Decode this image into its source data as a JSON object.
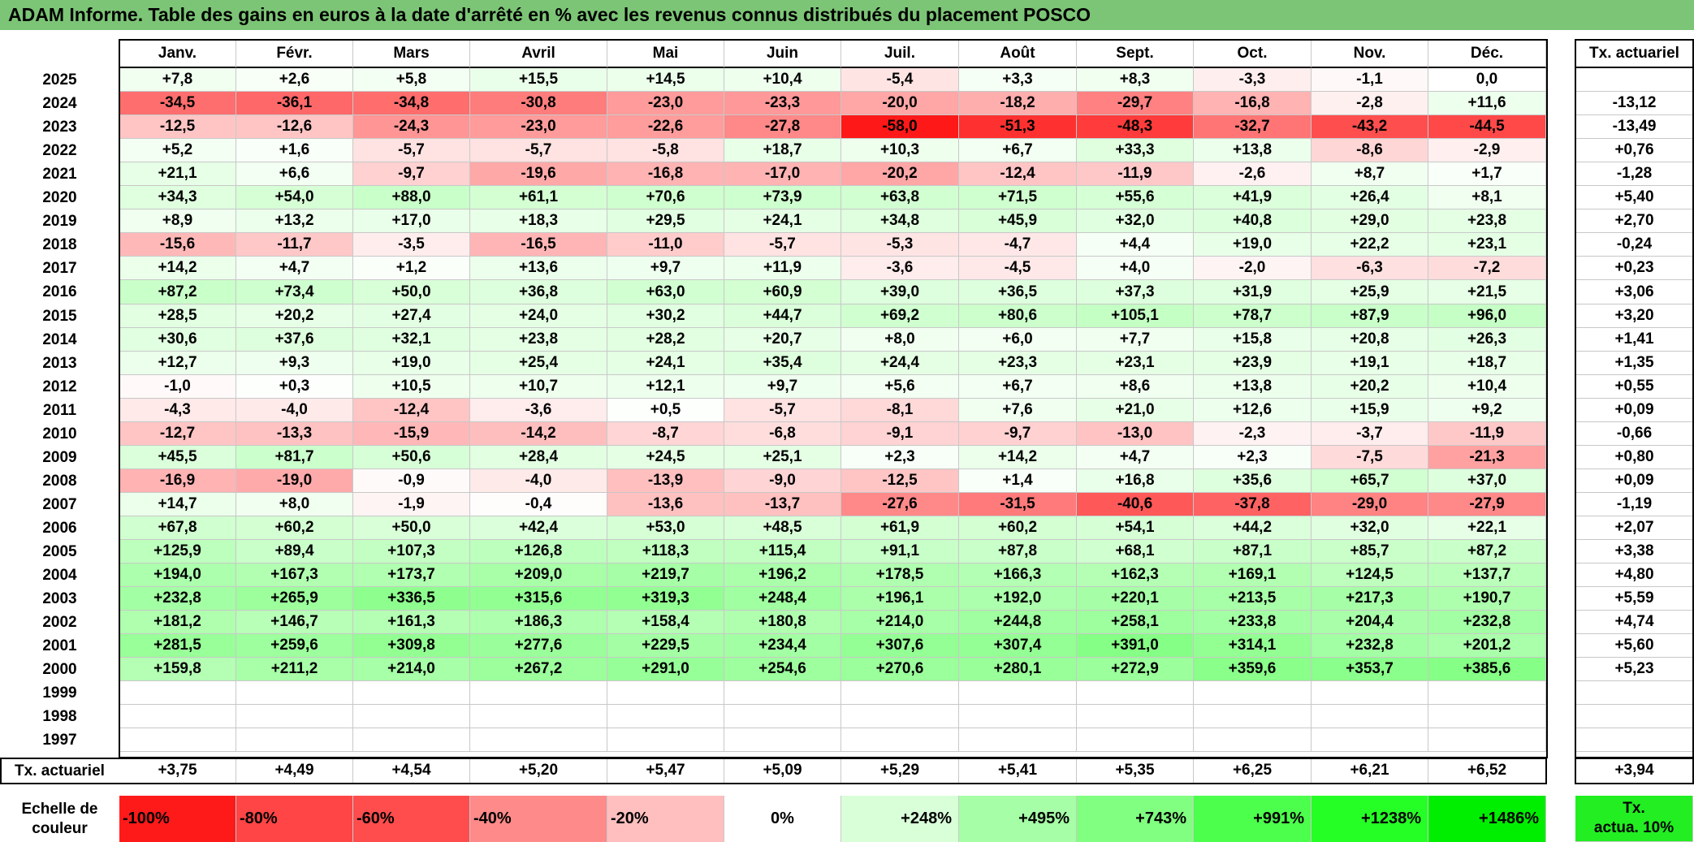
{
  "title": "ADAM Informe. Table des gains en euros à la date d'arrêté en % avec les revenus connus distribués du placement POSCO",
  "months": [
    "Janv.",
    "Févr.",
    "Mars",
    "Avril",
    "Mai",
    "Juin",
    "Juil.",
    "Août",
    "Sept.",
    "Oct.",
    "Nov.",
    "Déc."
  ],
  "annual_header": "Tx. actuariel",
  "rows": [
    {
      "year": "2025",
      "values": [
        "+7,8",
        "+2,6",
        "+5,8",
        "+15,5",
        "+14,5",
        "+10,4",
        "-5,4",
        "+3,3",
        "+8,3",
        "-3,3",
        "-1,1",
        "0,0"
      ],
      "annual": ""
    },
    {
      "year": "2024",
      "values": [
        "-34,5",
        "-36,1",
        "-34,8",
        "-30,8",
        "-23,0",
        "-23,3",
        "-20,0",
        "-18,2",
        "-29,7",
        "-16,8",
        "-2,8",
        "+11,6"
      ],
      "annual": "-13,12"
    },
    {
      "year": "2023",
      "values": [
        "-12,5",
        "-12,6",
        "-24,3",
        "-23,0",
        "-22,6",
        "-27,8",
        "-58,0",
        "-51,3",
        "-48,3",
        "-32,7",
        "-43,2",
        "-44,5"
      ],
      "annual": "-13,49"
    },
    {
      "year": "2022",
      "values": [
        "+5,2",
        "+1,6",
        "-5,7",
        "-5,7",
        "-5,8",
        "+18,7",
        "+10,3",
        "+6,7",
        "+33,3",
        "+13,8",
        "-8,6",
        "-2,9"
      ],
      "annual": "+0,76"
    },
    {
      "year": "2021",
      "values": [
        "+21,1",
        "+6,6",
        "-9,7",
        "-19,6",
        "-16,8",
        "-17,0",
        "-20,2",
        "-12,4",
        "-11,9",
        "-2,6",
        "+8,7",
        "+1,7"
      ],
      "annual": "-1,28"
    },
    {
      "year": "2020",
      "values": [
        "+34,3",
        "+54,0",
        "+88,0",
        "+61,1",
        "+70,6",
        "+73,9",
        "+63,8",
        "+71,5",
        "+55,6",
        "+41,9",
        "+26,4",
        "+8,1"
      ],
      "annual": "+5,40"
    },
    {
      "year": "2019",
      "values": [
        "+8,9",
        "+13,2",
        "+17,0",
        "+18,3",
        "+29,5",
        "+24,1",
        "+34,8",
        "+45,9",
        "+32,0",
        "+40,8",
        "+29,0",
        "+23,8"
      ],
      "annual": "+2,70"
    },
    {
      "year": "2018",
      "values": [
        "-15,6",
        "-11,7",
        "-3,5",
        "-16,5",
        "-11,0",
        "-5,7",
        "-5,3",
        "-4,7",
        "+4,4",
        "+19,0",
        "+22,2",
        "+23,1"
      ],
      "annual": "-0,24"
    },
    {
      "year": "2017",
      "values": [
        "+14,2",
        "+4,7",
        "+1,2",
        "+13,6",
        "+9,7",
        "+11,9",
        "-3,6",
        "-4,5",
        "+4,0",
        "-2,0",
        "-6,3",
        "-7,2"
      ],
      "annual": "+0,23"
    },
    {
      "year": "2016",
      "values": [
        "+87,2",
        "+73,4",
        "+50,0",
        "+36,8",
        "+63,0",
        "+60,9",
        "+39,0",
        "+36,5",
        "+37,3",
        "+31,9",
        "+25,9",
        "+21,5"
      ],
      "annual": "+3,06"
    },
    {
      "year": "2015",
      "values": [
        "+28,5",
        "+20,2",
        "+27,4",
        "+24,0",
        "+30,2",
        "+44,7",
        "+69,2",
        "+80,6",
        "+105,1",
        "+78,7",
        "+87,9",
        "+96,0"
      ],
      "annual": "+3,20"
    },
    {
      "year": "2014",
      "values": [
        "+30,6",
        "+37,6",
        "+32,1",
        "+23,8",
        "+28,2",
        "+20,7",
        "+8,0",
        "+6,0",
        "+7,7",
        "+15,8",
        "+20,8",
        "+26,3"
      ],
      "annual": "+1,41"
    },
    {
      "year": "2013",
      "values": [
        "+12,7",
        "+9,3",
        "+19,0",
        "+25,4",
        "+24,1",
        "+35,4",
        "+24,4",
        "+23,3",
        "+23,1",
        "+23,9",
        "+19,1",
        "+18,7"
      ],
      "annual": "+1,35"
    },
    {
      "year": "2012",
      "values": [
        "-1,0",
        "+0,3",
        "+10,5",
        "+10,7",
        "+12,1",
        "+9,7",
        "+5,6",
        "+6,7",
        "+8,6",
        "+13,8",
        "+20,2",
        "+10,4"
      ],
      "annual": "+0,55"
    },
    {
      "year": "2011",
      "values": [
        "-4,3",
        "-4,0",
        "-12,4",
        "-3,6",
        "+0,5",
        "-5,7",
        "-8,1",
        "+7,6",
        "+21,0",
        "+12,6",
        "+15,9",
        "+9,2"
      ],
      "annual": "+0,09"
    },
    {
      "year": "2010",
      "values": [
        "-12,7",
        "-13,3",
        "-15,9",
        "-14,2",
        "-8,7",
        "-6,8",
        "-9,1",
        "-9,7",
        "-13,0",
        "-2,3",
        "-3,7",
        "-11,9"
      ],
      "annual": "-0,66"
    },
    {
      "year": "2009",
      "values": [
        "+45,5",
        "+81,7",
        "+50,6",
        "+28,4",
        "+24,5",
        "+25,1",
        "+2,3",
        "+14,2",
        "+4,7",
        "+2,3",
        "-7,5",
        "-21,3"
      ],
      "annual": "+0,80"
    },
    {
      "year": "2008",
      "values": [
        "-16,9",
        "-19,0",
        "-0,9",
        "-4,0",
        "-13,9",
        "-9,0",
        "-12,5",
        "+1,4",
        "+16,8",
        "+35,6",
        "+65,7",
        "+37,0"
      ],
      "annual": "+0,09"
    },
    {
      "year": "2007",
      "values": [
        "+14,7",
        "+8,0",
        "-1,9",
        "-0,4",
        "-13,6",
        "-13,7",
        "-27,6",
        "-31,5",
        "-40,6",
        "-37,8",
        "-29,0",
        "-27,9"
      ],
      "annual": "-1,19"
    },
    {
      "year": "2006",
      "values": [
        "+67,8",
        "+60,2",
        "+50,0",
        "+42,4",
        "+53,0",
        "+48,5",
        "+61,9",
        "+60,2",
        "+54,1",
        "+44,2",
        "+32,0",
        "+22,1"
      ],
      "annual": "+2,07"
    },
    {
      "year": "2005",
      "values": [
        "+125,9",
        "+89,4",
        "+107,3",
        "+126,8",
        "+118,3",
        "+115,4",
        "+91,1",
        "+87,8",
        "+68,1",
        "+87,1",
        "+85,7",
        "+87,2"
      ],
      "annual": "+3,38"
    },
    {
      "year": "2004",
      "values": [
        "+194,0",
        "+167,3",
        "+173,7",
        "+209,0",
        "+219,7",
        "+196,2",
        "+178,5",
        "+166,3",
        "+162,3",
        "+169,1",
        "+124,5",
        "+137,7"
      ],
      "annual": "+4,80"
    },
    {
      "year": "2003",
      "values": [
        "+232,8",
        "+265,9",
        "+336,5",
        "+315,6",
        "+319,3",
        "+248,4",
        "+196,1",
        "+192,0",
        "+220,1",
        "+213,5",
        "+217,3",
        "+190,7"
      ],
      "annual": "+5,59"
    },
    {
      "year": "2002",
      "values": [
        "+181,2",
        "+146,7",
        "+161,3",
        "+186,3",
        "+158,4",
        "+180,8",
        "+214,0",
        "+244,8",
        "+258,1",
        "+233,8",
        "+204,4",
        "+232,8"
      ],
      "annual": "+4,74"
    },
    {
      "year": "2001",
      "values": [
        "+281,5",
        "+259,6",
        "+309,8",
        "+277,6",
        "+229,5",
        "+234,4",
        "+307,6",
        "+307,4",
        "+391,0",
        "+314,1",
        "+232,8",
        "+201,2"
      ],
      "annual": "+5,60"
    },
    {
      "year": "2000",
      "values": [
        "+159,8",
        "+211,2",
        "+214,0",
        "+267,2",
        "+291,0",
        "+254,6",
        "+270,6",
        "+280,1",
        "+272,9",
        "+359,6",
        "+353,7",
        "+385,6"
      ],
      "annual": "+5,23"
    },
    {
      "year": "1999",
      "values": [
        "",
        "",
        "",
        "",
        "",
        "",
        "",
        "",
        "",
        "",
        "",
        ""
      ],
      "annual": ""
    },
    {
      "year": "1998",
      "values": [
        "",
        "",
        "",
        "",
        "",
        "",
        "",
        "",
        "",
        "",
        "",
        ""
      ],
      "annual": ""
    },
    {
      "year": "1997",
      "values": [
        "",
        "",
        "",
        "",
        "",
        "",
        "",
        "",
        "",
        "",
        "",
        ""
      ],
      "annual": ""
    }
  ],
  "footer": {
    "label": "Tx. actuariel",
    "values": [
      "+3,75",
      "+4,49",
      "+4,54",
      "+5,20",
      "+5,47",
      "+5,09",
      "+5,29",
      "+5,41",
      "+5,35",
      "+6,25",
      "+6,21",
      "+6,52"
    ],
    "annual": "+3,94"
  },
  "scale": {
    "label_line1": "Echelle de",
    "label_line2": "couleur",
    "items": [
      "-100%",
      "-80%",
      "-60%",
      "-40%",
      "-20%",
      "0%",
      "+248%",
      "+495%",
      "+743%",
      "+991%",
      "+1238%",
      "+1486%"
    ],
    "annual_line1": "Tx.",
    "annual_line2": "actua. 10%",
    "colors": [
      "#ff1a1a",
      "#ff4545",
      "#ff4d4d",
      "#ff8a8a",
      "#ffbfbf",
      "#ffffff",
      "#d9ffd9",
      "#a6ffa6",
      "#80ff80",
      "#4dff4d",
      "#26ff26",
      "#00ee00"
    ],
    "annual_color": "#22ee22"
  },
  "colors": {
    "title_bg": "#7cc576",
    "neg_max": "#ff1111",
    "pos_full": "#00ff00"
  }
}
